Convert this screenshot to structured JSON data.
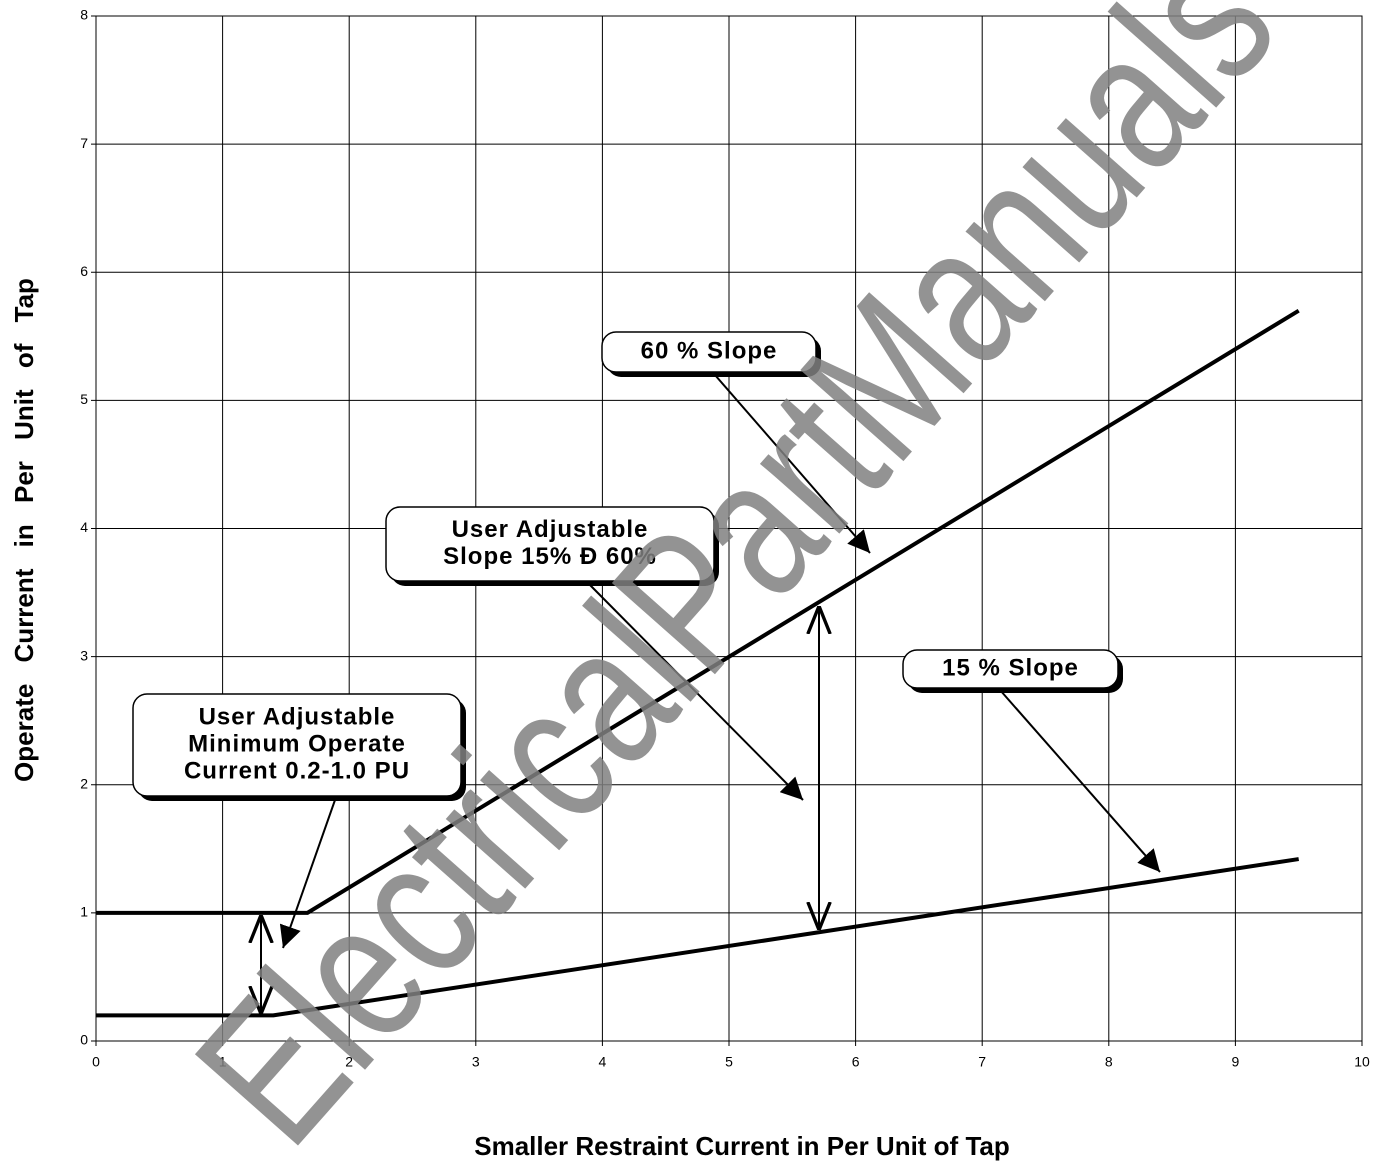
{
  "chart_data": {
    "type": "line",
    "x_label": "Smaller Restraint Current in Per Unit of Tap",
    "y_label": "Operate Current in Per Unit of Tap",
    "x": [
      0,
      1.4,
      1.67,
      9.5
    ],
    "series": [
      {
        "color": "#000000",
        "values": [
          1,
          1,
          1,
          5.7
        ]
      },
      {
        "color": "#000000",
        "values": [
          0.2,
          0.2,
          0.24,
          1.42
        ]
      }
    ],
    "xlim": [
      0,
      10
    ],
    "xticks": [
      0,
      1,
      2,
      3,
      4,
      5,
      6,
      7,
      8,
      9,
      10
    ],
    "ylim": [
      0,
      8
    ],
    "yticks": [
      0,
      1,
      2,
      3,
      4,
      5,
      6,
      7,
      8
    ],
    "grid": true,
    "annotations": [
      {
        "lines": [
          "60 % Slope"
        ]
      },
      {
        "lines": [
          "User  Adjustable",
          "Slope 15% Ð 60%"
        ]
      },
      {
        "lines": [
          "15  %  Slope"
        ]
      },
      {
        "lines": [
          "User  Adjustable",
          "Minimum Operate",
          "Current  0.2-1.0 PU"
        ]
      }
    ],
    "watermark": "ElectricalPartManuals"
  }
}
